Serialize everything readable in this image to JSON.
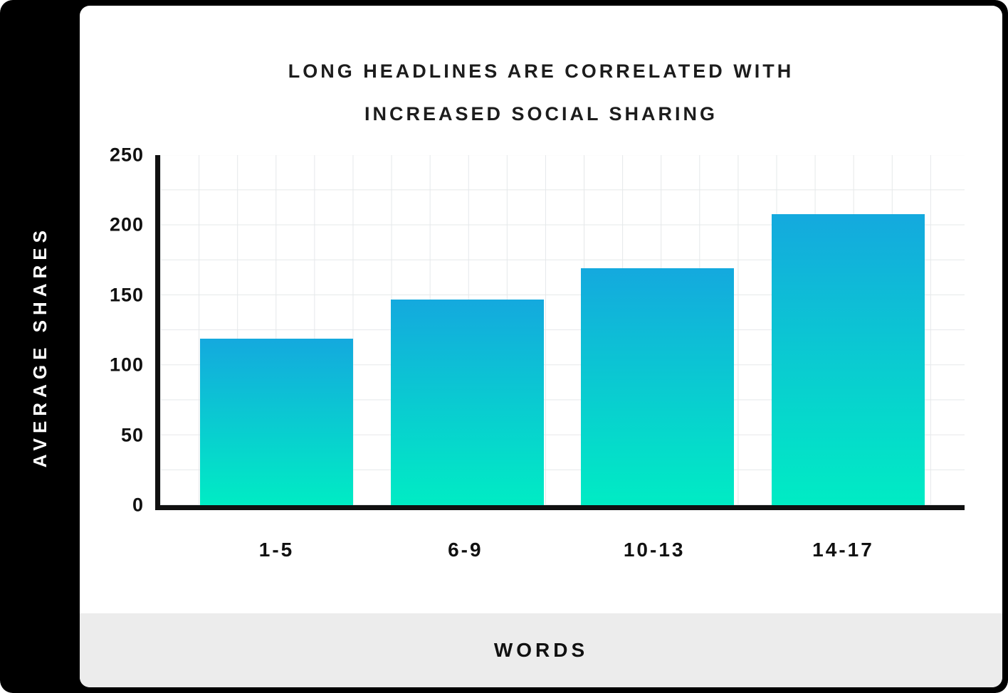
{
  "title": {
    "line1": "LONG HEADLINES ARE CORRELATED WITH",
    "line2": "INCREASED SOCIAL SHARING"
  },
  "chart_data": {
    "type": "bar",
    "title": "LONG HEADLINES ARE CORRELATED WITH INCREASED SOCIAL SHARING",
    "categories": [
      "1-5",
      "6-9",
      "10-13",
      "14-17"
    ],
    "values": [
      119,
      147,
      169,
      208
    ],
    "xlabel": "WORDS",
    "ylabel": "AVERAGE SHARES",
    "ylim": [
      0,
      250
    ],
    "yticks": [
      0,
      50,
      100,
      150,
      200,
      250
    ],
    "grid": true,
    "legend": false,
    "bar_gradient_top": "#14a9de",
    "bar_gradient_bottom": "#00ecc4"
  },
  "colors": {
    "frame_background": "#000000",
    "card_background": "#ffffff",
    "footer_background": "#ececec",
    "gridline": "#e5e8ea",
    "axis": "#101010",
    "text": "#1c1c1c",
    "ylabel_text": "#ffffff"
  }
}
